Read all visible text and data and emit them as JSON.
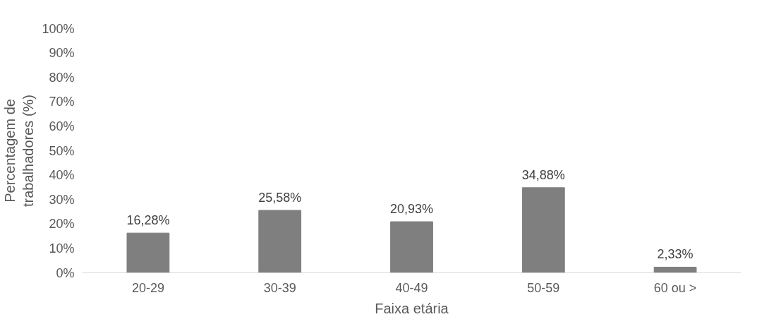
{
  "chart_data": {
    "type": "bar",
    "xlabel": "Faixa etária",
    "ylabel": "Percentagem de\ntrabalhadores (%)",
    "categories": [
      "20-29",
      "30-39",
      "40-49",
      "50-59",
      "60 ou >"
    ],
    "values": [
      16.28,
      25.58,
      20.93,
      34.88,
      2.33
    ],
    "value_labels": [
      "16,28%",
      "25,58%",
      "20,93%",
      "34,88%",
      "2,33%"
    ],
    "color": "#7f7f7f",
    "ylim": [
      0,
      100
    ],
    "yticks": [
      {
        "value": 0,
        "label": "0%"
      },
      {
        "value": 10,
        "label": "10%"
      },
      {
        "value": 20,
        "label": "20%"
      },
      {
        "value": 30,
        "label": "30%"
      },
      {
        "value": 40,
        "label": "40%"
      },
      {
        "value": 50,
        "label": "50%"
      },
      {
        "value": 60,
        "label": "60%"
      },
      {
        "value": 70,
        "label": "70%"
      },
      {
        "value": 80,
        "label": "80%"
      },
      {
        "value": 90,
        "label": "90%"
      },
      {
        "value": 100,
        "label": "100%"
      }
    ],
    "grid": false
  }
}
